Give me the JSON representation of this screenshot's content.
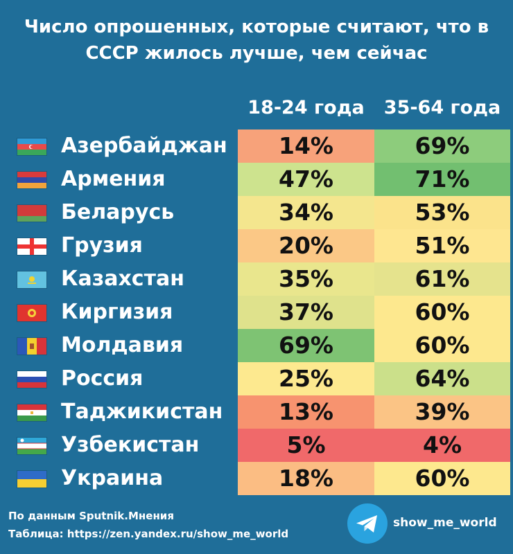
{
  "title": {
    "line1": "Число опрошенных, которые считают, что в",
    "line2": "СССР жилось лучше, чем сейчас"
  },
  "footer": {
    "source_line1": "По данным Sputnik.Мнения",
    "source_line2": "Таблица: https://zen.yandex.ru/show_me_world",
    "telegram_handle": "show_me_world",
    "telegram_icon": "telegram-plane-icon"
  },
  "chart_data": {
    "type": "table",
    "title": "Число опрошенных, которые считают, что в СССР жилось лучше, чем сейчас",
    "unit": "%",
    "columns": [
      "18-24 года",
      "35-64 года"
    ],
    "rows": [
      {
        "country": "Азербайджан",
        "flag": "azerbaijan-flag",
        "values": [
          "14%",
          "69%"
        ],
        "colors": [
          "#f7a27a",
          "#8dcc7c"
        ]
      },
      {
        "country": "Армения",
        "flag": "armenia-flag",
        "values": [
          "47%",
          "71%"
        ],
        "colors": [
          "#cde38e",
          "#72bf70"
        ]
      },
      {
        "country": "Беларусь",
        "flag": "belarus-flag",
        "values": [
          "34%",
          "53%"
        ],
        "colors": [
          "#f4e68e",
          "#fbe38b"
        ]
      },
      {
        "country": "Грузия",
        "flag": "georgia-flag",
        "values": [
          "20%",
          "51%"
        ],
        "colors": [
          "#fbc886",
          "#fee690"
        ]
      },
      {
        "country": "Казахстан",
        "flag": "kazakhstan-flag",
        "values": [
          "35%",
          "61%"
        ],
        "colors": [
          "#e9e68d",
          "#e5e38d"
        ]
      },
      {
        "country": "Киргизия",
        "flag": "kyrgyzstan-flag",
        "values": [
          "37%",
          "60%"
        ],
        "colors": [
          "#dfe28c",
          "#fde88e"
        ]
      },
      {
        "country": "Молдавия",
        "flag": "moldova-flag",
        "values": [
          "69%",
          "60%"
        ],
        "colors": [
          "#7ec373",
          "#fde88e"
        ]
      },
      {
        "country": "Россия",
        "flag": "russia-flag",
        "values": [
          "25%",
          "64%"
        ],
        "colors": [
          "#fde98f",
          "#cbe08a"
        ]
      },
      {
        "country": "Таджикистан",
        "flag": "tajikistan-flag",
        "values": [
          "13%",
          "39%"
        ],
        "colors": [
          "#f7936f",
          "#fbc485"
        ]
      },
      {
        "country": "Узбекистан",
        "flag": "uzbekistan-flag",
        "values": [
          "5%",
          "4%"
        ],
        "colors": [
          "#f0696a",
          "#f0696a"
        ]
      },
      {
        "country": "Украина",
        "flag": "ukraine-flag",
        "values": [
          "18%",
          "60%"
        ],
        "colors": [
          "#fbbd83",
          "#fde88e"
        ]
      }
    ]
  }
}
